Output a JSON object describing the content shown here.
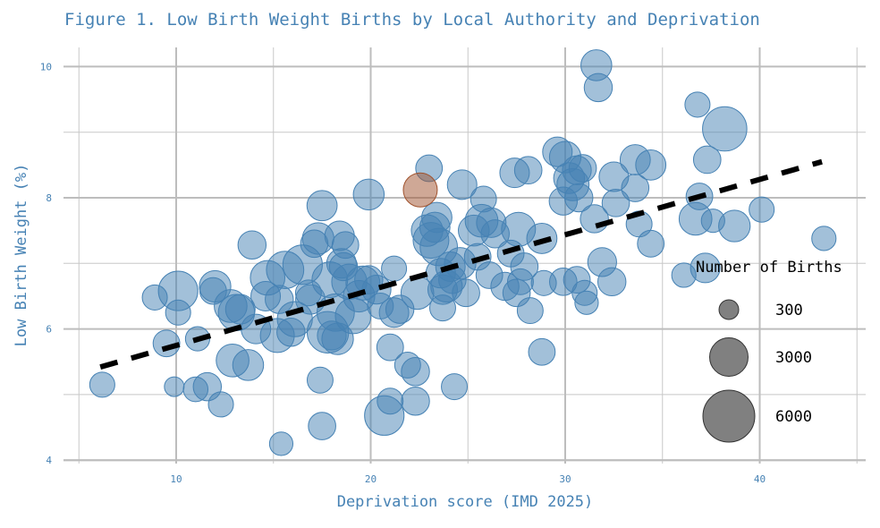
{
  "chart_data": {
    "type": "scatter",
    "subtype": "bubble",
    "title": "Figure 1. Low Birth Weight Births by Local Authority and Deprivation",
    "xlabel": "Deprivation score (IMD 2025)",
    "ylabel": "Low Birth Weight (%)",
    "xlim": [
      5,
      45
    ],
    "ylim": [
      4,
      10.3
    ],
    "x_ticks": [
      10,
      20,
      30,
      40
    ],
    "y_ticks": [
      4,
      6,
      8,
      10
    ],
    "x_minor_ticks": [
      5,
      15,
      25,
      35,
      45
    ],
    "y_minor_ticks": [
      5,
      7,
      9
    ],
    "grid": true,
    "colors": {
      "bubble": "#4682b4",
      "highlight": "#a0522d",
      "legend_bubble": "#000000",
      "trend": "#000000",
      "text": "#4682b4"
    },
    "legend": {
      "title": "Number of Births",
      "placement": "right",
      "entries": [
        {
          "label": "300",
          "births": 300
        },
        {
          "label": "3000",
          "births": 3000
        },
        {
          "label": "6000",
          "births": 6000
        }
      ]
    },
    "trendline": {
      "style": "dashed",
      "x": [
        6.1,
        43.2
      ],
      "y": [
        5.42,
        8.55
      ]
    },
    "highlight_point": {
      "x": 22.55,
      "y": 8.12,
      "births": 2200
    },
    "points": [
      {
        "x": 6.2,
        "y": 5.15,
        "births": 900
      },
      {
        "x": 8.9,
        "y": 6.48,
        "births": 900
      },
      {
        "x": 9.5,
        "y": 5.78,
        "births": 1100
      },
      {
        "x": 9.9,
        "y": 5.12,
        "births": 300
      },
      {
        "x": 10.1,
        "y": 6.58,
        "births": 3200
      },
      {
        "x": 10.1,
        "y": 6.25,
        "births": 900
      },
      {
        "x": 11.1,
        "y": 5.85,
        "births": 800
      },
      {
        "x": 11.0,
        "y": 5.08,
        "births": 850
      },
      {
        "x": 11.6,
        "y": 5.12,
        "births": 1300
      },
      {
        "x": 11.9,
        "y": 6.58,
        "births": 1100
      },
      {
        "x": 12.0,
        "y": 6.65,
        "births": 1800
      },
      {
        "x": 12.3,
        "y": 4.85,
        "births": 900
      },
      {
        "x": 12.8,
        "y": 6.35,
        "births": 2000
      },
      {
        "x": 12.9,
        "y": 5.52,
        "births": 2000
      },
      {
        "x": 13.1,
        "y": 6.25,
        "births": 2600
      },
      {
        "x": 13.3,
        "y": 6.3,
        "births": 1500
      },
      {
        "x": 13.7,
        "y": 5.45,
        "births": 1700
      },
      {
        "x": 13.9,
        "y": 7.28,
        "births": 1300
      },
      {
        "x": 14.1,
        "y": 6.0,
        "births": 1500
      },
      {
        "x": 14.6,
        "y": 6.5,
        "births": 1500
      },
      {
        "x": 14.7,
        "y": 6.78,
        "births": 2300
      },
      {
        "x": 15.2,
        "y": 5.9,
        "births": 2200
      },
      {
        "x": 15.3,
        "y": 6.45,
        "births": 1300
      },
      {
        "x": 15.4,
        "y": 4.25,
        "births": 700
      },
      {
        "x": 15.6,
        "y": 6.9,
        "births": 2800
      },
      {
        "x": 15.9,
        "y": 5.95,
        "births": 1300
      },
      {
        "x": 16.1,
        "y": 6.15,
        "births": 2400
      },
      {
        "x": 16.5,
        "y": 6.98,
        "births": 3200
      },
      {
        "x": 16.9,
        "y": 6.45,
        "births": 1500
      },
      {
        "x": 16.8,
        "y": 6.55,
        "births": 1000
      },
      {
        "x": 17.1,
        "y": 7.3,
        "births": 1200
      },
      {
        "x": 17.3,
        "y": 7.38,
        "births": 1800
      },
      {
        "x": 17.4,
        "y": 5.22,
        "births": 1000
      },
      {
        "x": 17.5,
        "y": 7.88,
        "births": 1600
      },
      {
        "x": 17.5,
        "y": 4.52,
        "births": 1200
      },
      {
        "x": 17.8,
        "y": 5.95,
        "births": 3600
      },
      {
        "x": 17.9,
        "y": 6.75,
        "births": 2500
      },
      {
        "x": 18.0,
        "y": 5.9,
        "births": 1400
      },
      {
        "x": 18.2,
        "y": 6.25,
        "births": 2800
      },
      {
        "x": 18.3,
        "y": 5.85,
        "births": 1800
      },
      {
        "x": 18.4,
        "y": 7.42,
        "births": 1500
      },
      {
        "x": 18.5,
        "y": 7.0,
        "births": 1500
      },
      {
        "x": 18.6,
        "y": 6.95,
        "births": 1300
      },
      {
        "x": 18.7,
        "y": 7.28,
        "births": 1100
      },
      {
        "x": 18.9,
        "y": 6.72,
        "births": 2400
      },
      {
        "x": 19.1,
        "y": 6.2,
        "births": 2500
      },
      {
        "x": 19.4,
        "y": 6.5,
        "births": 1800
      },
      {
        "x": 19.6,
        "y": 6.7,
        "births": 2200
      },
      {
        "x": 19.9,
        "y": 6.75,
        "births": 1300
      },
      {
        "x": 19.9,
        "y": 8.05,
        "births": 1700
      },
      {
        "x": 20.3,
        "y": 6.6,
        "births": 1400
      },
      {
        "x": 20.5,
        "y": 6.35,
        "births": 1000
      },
      {
        "x": 20.7,
        "y": 4.68,
        "births": 3200
      },
      {
        "x": 21.0,
        "y": 4.9,
        "births": 1000
      },
      {
        "x": 21.0,
        "y": 5.72,
        "births": 1100
      },
      {
        "x": 21.2,
        "y": 6.25,
        "births": 1500
      },
      {
        "x": 21.2,
        "y": 6.92,
        "births": 900
      },
      {
        "x": 21.5,
        "y": 6.3,
        "births": 1300
      },
      {
        "x": 21.9,
        "y": 5.45,
        "births": 1000
      },
      {
        "x": 22.3,
        "y": 5.35,
        "births": 1300
      },
      {
        "x": 22.3,
        "y": 4.9,
        "births": 1300
      },
      {
        "x": 22.4,
        "y": 6.55,
        "births": 2000
      },
      {
        "x": 22.9,
        "y": 7.5,
        "births": 1800
      },
      {
        "x": 23.0,
        "y": 8.45,
        "births": 1100
      },
      {
        "x": 23.1,
        "y": 7.35,
        "births": 2500
      },
      {
        "x": 23.3,
        "y": 7.55,
        "births": 1600
      },
      {
        "x": 23.4,
        "y": 7.7,
        "births": 1600
      },
      {
        "x": 23.5,
        "y": 7.25,
        "births": 2800
      },
      {
        "x": 23.6,
        "y": 6.85,
        "births": 1500
      },
      {
        "x": 23.7,
        "y": 6.6,
        "births": 1500
      },
      {
        "x": 23.7,
        "y": 6.32,
        "births": 1000
      },
      {
        "x": 23.9,
        "y": 6.65,
        "births": 1800
      },
      {
        "x": 24.1,
        "y": 6.95,
        "births": 1500
      },
      {
        "x": 24.2,
        "y": 6.75,
        "births": 1200
      },
      {
        "x": 24.3,
        "y": 5.12,
        "births": 1000
      },
      {
        "x": 24.6,
        "y": 7.0,
        "births": 1800
      },
      {
        "x": 24.7,
        "y": 8.2,
        "births": 1500
      },
      {
        "x": 24.9,
        "y": 6.55,
        "births": 1200
      },
      {
        "x": 25.3,
        "y": 7.5,
        "births": 1700
      },
      {
        "x": 25.5,
        "y": 7.1,
        "births": 1100
      },
      {
        "x": 25.7,
        "y": 7.65,
        "births": 2000
      },
      {
        "x": 25.8,
        "y": 7.98,
        "births": 1000
      },
      {
        "x": 26.1,
        "y": 6.82,
        "births": 1100
      },
      {
        "x": 26.2,
        "y": 7.62,
        "births": 1500
      },
      {
        "x": 26.4,
        "y": 7.45,
        "births": 1300
      },
      {
        "x": 26.9,
        "y": 6.65,
        "births": 1300
      },
      {
        "x": 27.2,
        "y": 7.15,
        "births": 1100
      },
      {
        "x": 27.4,
        "y": 8.38,
        "births": 1500
      },
      {
        "x": 27.5,
        "y": 6.55,
        "births": 1200
      },
      {
        "x": 27.6,
        "y": 7.52,
        "births": 2200
      },
      {
        "x": 27.7,
        "y": 6.72,
        "births": 1000
      },
      {
        "x": 27.9,
        "y": 6.95,
        "births": 1200
      },
      {
        "x": 28.1,
        "y": 8.42,
        "births": 1200
      },
      {
        "x": 28.2,
        "y": 6.28,
        "births": 1000
      },
      {
        "x": 28.8,
        "y": 7.38,
        "births": 1600
      },
      {
        "x": 28.8,
        "y": 5.65,
        "births": 1100
      },
      {
        "x": 28.9,
        "y": 6.7,
        "births": 900
      },
      {
        "x": 29.6,
        "y": 8.7,
        "births": 1500
      },
      {
        "x": 29.9,
        "y": 7.95,
        "births": 1300
      },
      {
        "x": 29.9,
        "y": 6.72,
        "births": 1200
      },
      {
        "x": 30.0,
        "y": 8.62,
        "births": 1800
      },
      {
        "x": 30.2,
        "y": 8.3,
        "births": 1700
      },
      {
        "x": 30.4,
        "y": 8.2,
        "births": 1900
      },
      {
        "x": 30.6,
        "y": 8.42,
        "births": 1400
      },
      {
        "x": 30.6,
        "y": 6.75,
        "births": 1100
      },
      {
        "x": 30.7,
        "y": 8.0,
        "births": 1300
      },
      {
        "x": 30.9,
        "y": 8.45,
        "births": 1200
      },
      {
        "x": 31.0,
        "y": 6.55,
        "births": 900
      },
      {
        "x": 31.1,
        "y": 6.4,
        "births": 700
      },
      {
        "x": 31.5,
        "y": 7.68,
        "births": 1300
      },
      {
        "x": 31.6,
        "y": 10.02,
        "births": 1700
      },
      {
        "x": 31.7,
        "y": 9.68,
        "births": 1300
      },
      {
        "x": 31.9,
        "y": 7.02,
        "births": 1400
      },
      {
        "x": 32.5,
        "y": 8.32,
        "births": 1500
      },
      {
        "x": 32.4,
        "y": 6.72,
        "births": 1300
      },
      {
        "x": 32.6,
        "y": 7.92,
        "births": 1200
      },
      {
        "x": 33.6,
        "y": 8.58,
        "births": 1600
      },
      {
        "x": 33.6,
        "y": 8.15,
        "births": 1200
      },
      {
        "x": 33.8,
        "y": 7.6,
        "births": 1000
      },
      {
        "x": 34.4,
        "y": 8.5,
        "births": 1600
      },
      {
        "x": 34.4,
        "y": 7.3,
        "births": 1100
      },
      {
        "x": 36.1,
        "y": 6.82,
        "births": 800
      },
      {
        "x": 36.8,
        "y": 9.42,
        "births": 900
      },
      {
        "x": 36.7,
        "y": 7.68,
        "births": 2000
      },
      {
        "x": 36.9,
        "y": 8.02,
        "births": 1100
      },
      {
        "x": 37.2,
        "y": 6.93,
        "births": 1500
      },
      {
        "x": 37.3,
        "y": 8.58,
        "births": 1200
      },
      {
        "x": 37.6,
        "y": 7.65,
        "births": 700
      },
      {
        "x": 38.2,
        "y": 9.05,
        "births": 4200
      },
      {
        "x": 38.7,
        "y": 7.57,
        "births": 1800
      },
      {
        "x": 40.1,
        "y": 7.82,
        "births": 900
      },
      {
        "x": 43.3,
        "y": 7.38,
        "births": 800
      }
    ]
  }
}
